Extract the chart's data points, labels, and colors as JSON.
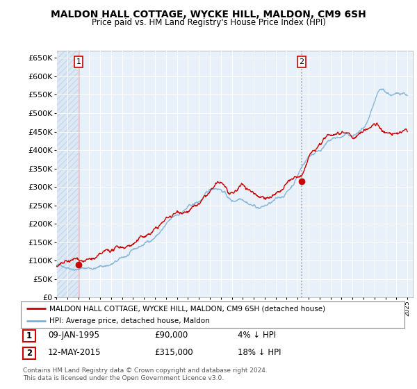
{
  "title": "MALDON HALL COTTAGE, WYCKE HILL, MALDON, CM9 6SH",
  "subtitle": "Price paid vs. HM Land Registry's House Price Index (HPI)",
  "ytick_values": [
    0,
    50000,
    100000,
    150000,
    200000,
    250000,
    300000,
    350000,
    400000,
    450000,
    500000,
    550000,
    600000,
    650000
  ],
  "ylim": [
    0,
    670000
  ],
  "sale1_date": 1995.03,
  "sale1_price": 90000,
  "sale2_date": 2015.37,
  "sale2_price": 315000,
  "hpi_color": "#7bafd4",
  "price_color": "#cc0000",
  "background_color": "#dce8f5",
  "background_color2": "#e8f0fa",
  "grid_color": "#ffffff",
  "legend_label1": "MALDON HALL COTTAGE, WYCKE HILL, MALDON, CM9 6SH (detached house)",
  "legend_label2": "HPI: Average price, detached house, Maldon",
  "table_row1": [
    "1",
    "09-JAN-1995",
    "£90,000",
    "4% ↓ HPI"
  ],
  "table_row2": [
    "2",
    "12-MAY-2015",
    "£315,000",
    "18% ↓ HPI"
  ],
  "footnote": "Contains HM Land Registry data © Crown copyright and database right 2024.\nThis data is licensed under the Open Government Licence v3.0.",
  "xmin": 1993,
  "xmax": 2025.5
}
